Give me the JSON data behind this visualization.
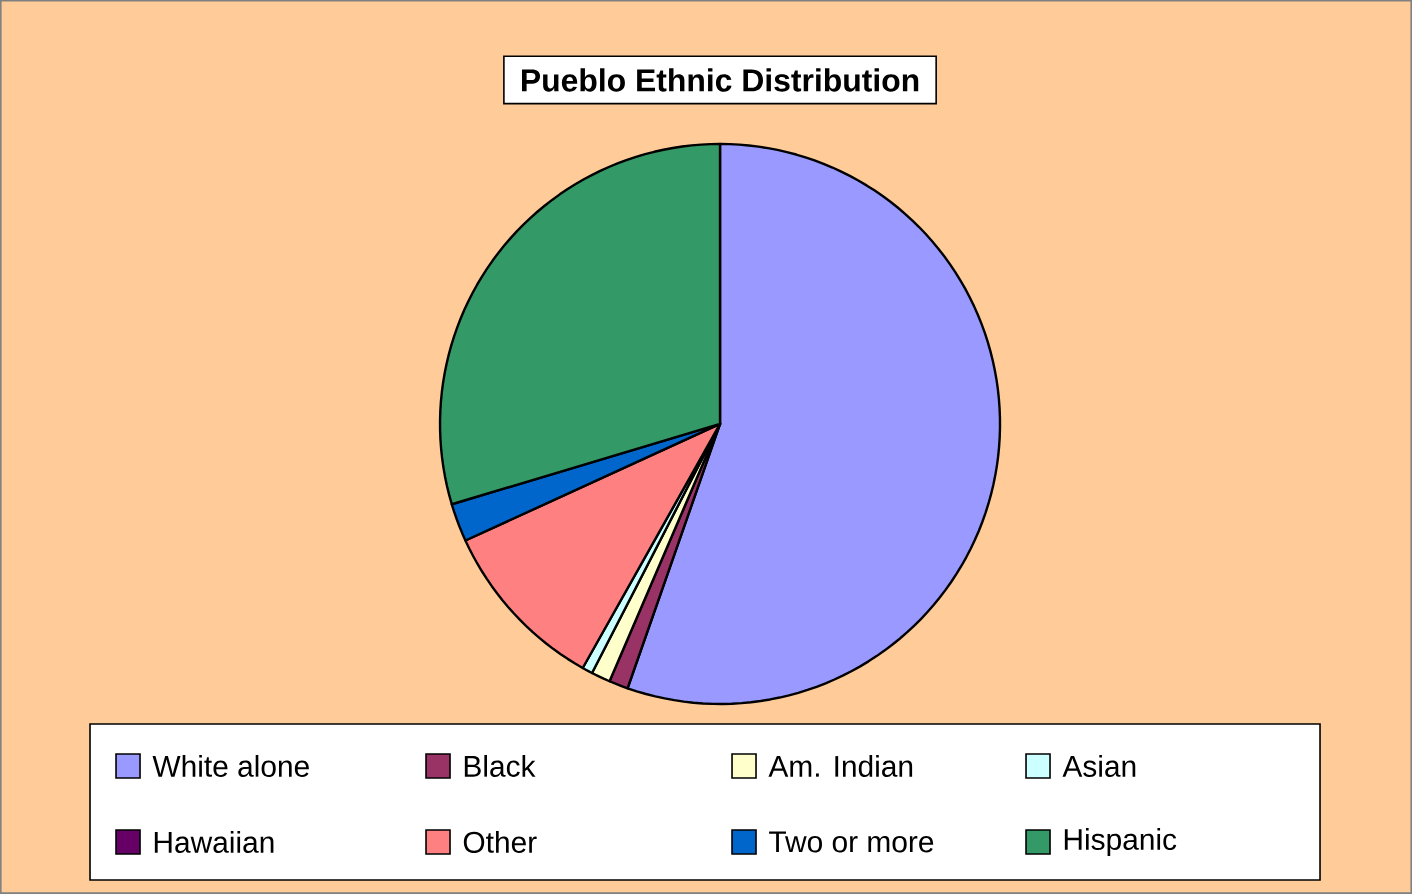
{
  "chart_data": {
    "type": "pie",
    "title": "Pueblo Ethnic Distribution",
    "categories": [
      "White alone",
      "Black",
      "Am. Indian",
      "Asian",
      "Hawaiian",
      "Other",
      "Two or more",
      "Hispanic"
    ],
    "values": [
      55.3,
      1.1,
      1.1,
      0.6,
      null,
      10.0,
      2.2,
      29.6
    ],
    "colors": [
      "#9999ff",
      "#993366",
      "#ffffcc",
      "#ccffff",
      "#660066",
      "#ff8080",
      "#0066cc",
      "#339966"
    ],
    "legend": "bottom"
  }
}
